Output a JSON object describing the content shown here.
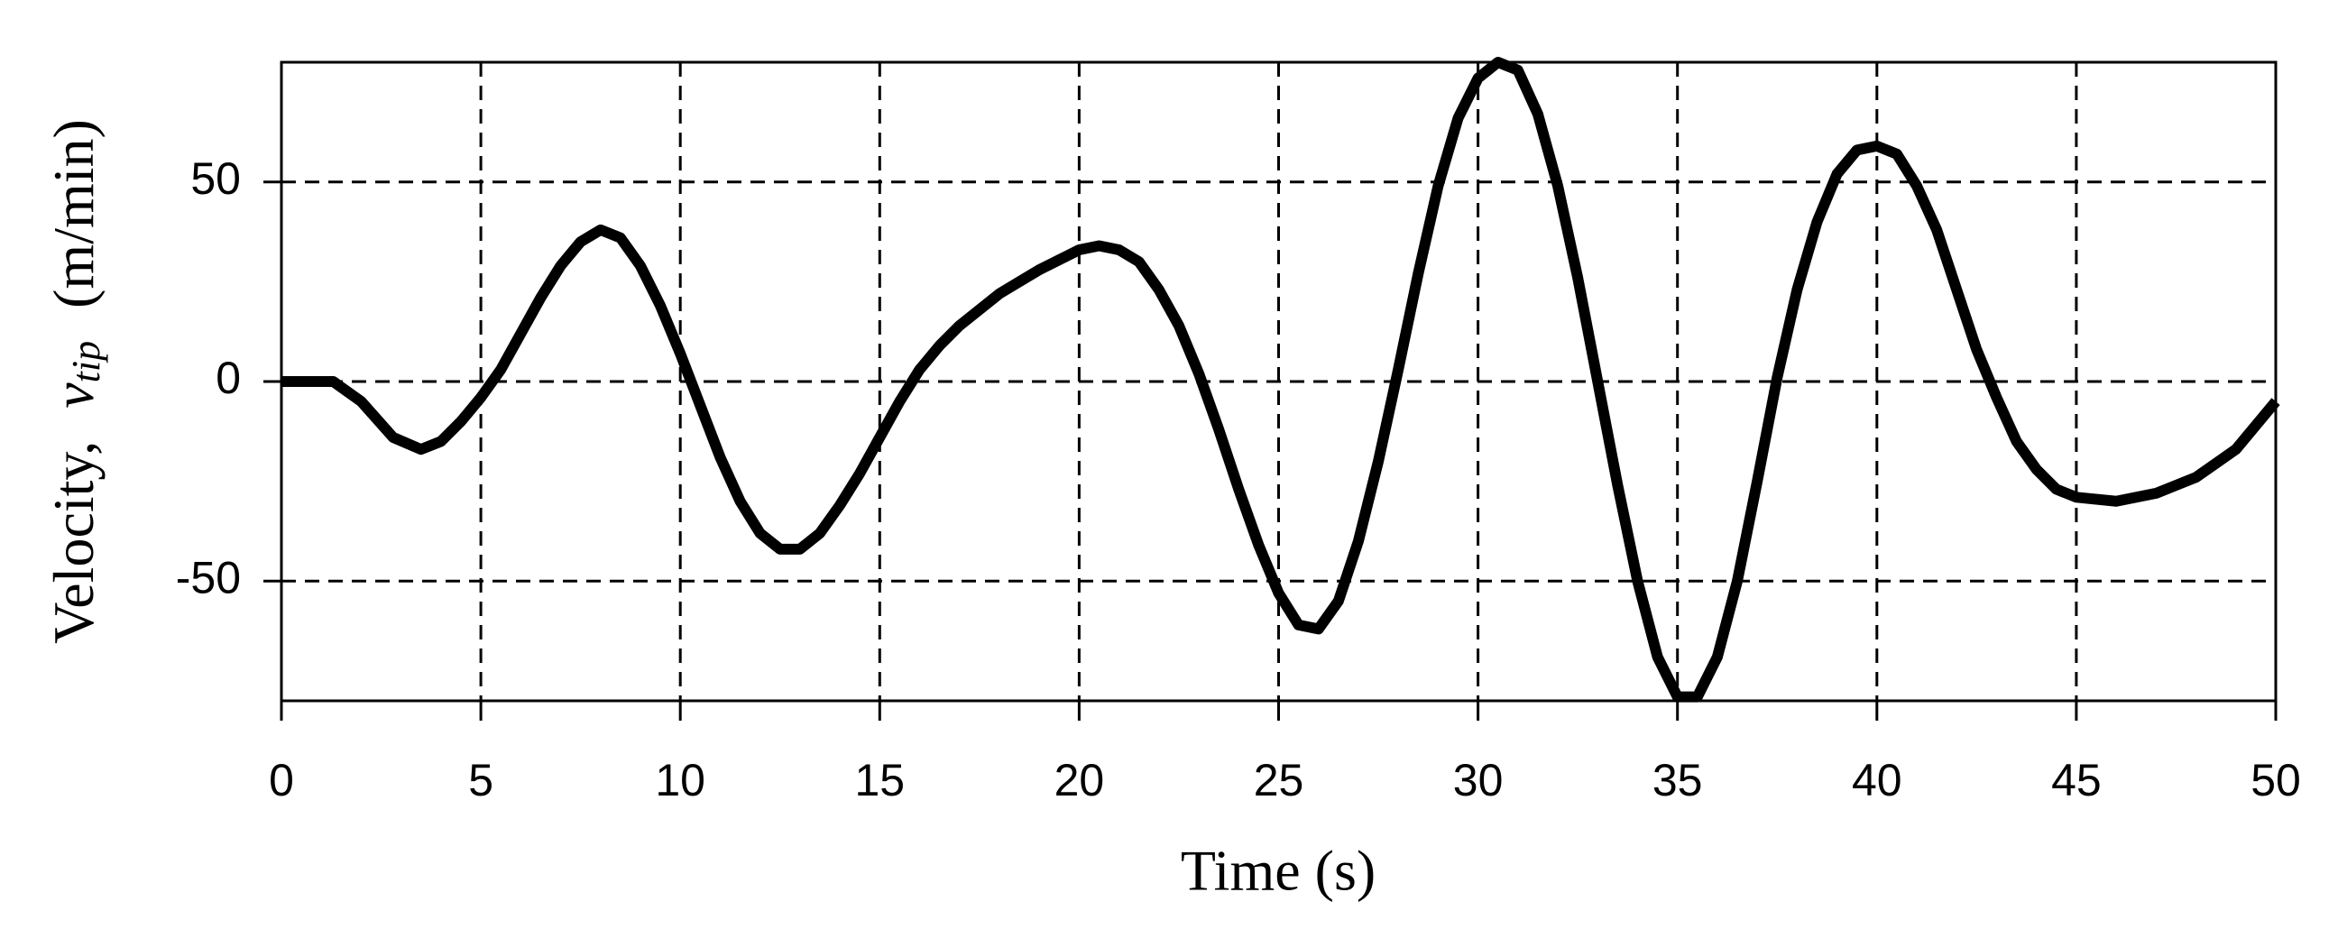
{
  "chart_data": {
    "type": "line",
    "xlabel": "Time (s)",
    "ylabel": {
      "prefix": "Velocity,",
      "symbol": "v",
      "subscript": "tip",
      "unit": "(m/min)"
    },
    "x": [
      0,
      1,
      1.3,
      2,
      2.8,
      3.5,
      4,
      4.5,
      5,
      5.5,
      6,
      6.5,
      7,
      7.5,
      8,
      8.5,
      9,
      9.5,
      10,
      10.5,
      11,
      11.5,
      12,
      12.5,
      13,
      13.5,
      14,
      14.5,
      15,
      15.5,
      16,
      16.5,
      17,
      18,
      19,
      20,
      20.5,
      21,
      21.5,
      22,
      22.5,
      23,
      23.5,
      24,
      24.5,
      25,
      25.5,
      26,
      26.5,
      27,
      27.5,
      28,
      28.5,
      29,
      29.5,
      30,
      30.5,
      31,
      31.5,
      32,
      32.5,
      33,
      33.5,
      34,
      34.5,
      35,
      35.5,
      36,
      36.5,
      37,
      37.5,
      38,
      38.5,
      39,
      39.5,
      40,
      40.5,
      41,
      41.5,
      42,
      42.5,
      43,
      43.5,
      44,
      44.5,
      45,
      46,
      47,
      48,
      49,
      50
    ],
    "series": [
      {
        "name": "v_tip",
        "color": "#000000",
        "values": [
          0,
          0,
          0,
          -5,
          -14,
          -17,
          -15,
          -10,
          -4,
          3,
          12,
          21,
          29,
          35,
          38,
          36,
          29,
          19,
          7,
          -6,
          -19,
          -30,
          -38,
          -42,
          -42,
          -38,
          -31,
          -23,
          -14,
          -5,
          3,
          9,
          14,
          22,
          28,
          33,
          34,
          33,
          30,
          23,
          14,
          2,
          -12,
          -27,
          -41,
          -53,
          -61,
          -62,
          -55,
          -40,
          -20,
          3,
          27,
          49,
          66,
          76,
          80,
          78,
          67,
          49,
          26,
          0,
          -26,
          -50,
          -69,
          -79,
          -79,
          -69,
          -50,
          -25,
          1,
          23,
          40,
          52,
          58,
          59,
          57,
          49,
          38,
          23,
          8,
          -4,
          -15,
          -22,
          -27,
          -29,
          -30,
          -28,
          -24,
          -17,
          -5
        ]
      }
    ],
    "xlim": [
      0,
      50
    ],
    "ylim": [
      -80,
      80
    ],
    "xticks": [
      0,
      5,
      10,
      15,
      20,
      25,
      30,
      35,
      40,
      45,
      50
    ],
    "yticks": [
      -50,
      0,
      50
    ],
    "grid": true
  }
}
